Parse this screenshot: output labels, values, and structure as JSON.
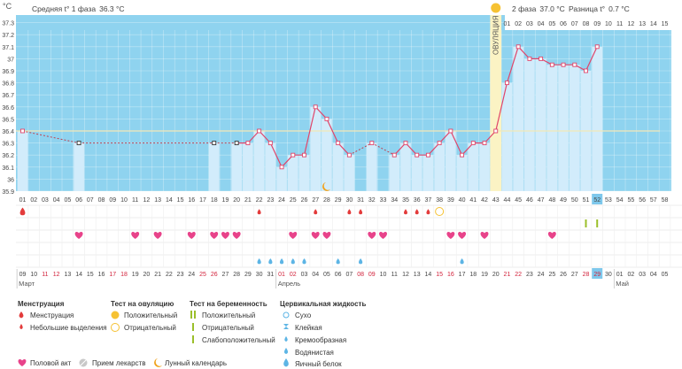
{
  "header": {
    "unit": "°C",
    "phase1_label": "Средняя t° 1 фаза",
    "phase1_value": "36.3 °C",
    "phase2_label": "2 фаза",
    "phase2_value": "37.0 °C",
    "diff_label": "Разница t°",
    "diff_value": "0.7 °C",
    "ovulation_label": "ОВУЛЯЦИЯ"
  },
  "chart_data": {
    "type": "line",
    "y_ticks": [
      "35.9",
      "36",
      "36.1",
      "36.2",
      "36.3",
      "36.4",
      "36.5",
      "36.6",
      "36.7",
      "36.8",
      "36.9",
      "37",
      "37.1",
      "37.2",
      "37.3"
    ],
    "ylim": [
      35.9,
      37.3
    ],
    "cycle_days": [
      "01",
      "02",
      "03",
      "04",
      "05",
      "06",
      "07",
      "08",
      "09",
      "10",
      "11",
      "12",
      "13",
      "14",
      "15",
      "16",
      "17",
      "18",
      "19",
      "20",
      "21",
      "22",
      "23",
      "24",
      "25",
      "26",
      "27",
      "28",
      "29",
      "30",
      "31",
      "32",
      "33",
      "34",
      "35",
      "36",
      "37",
      "38",
      "39",
      "40",
      "41",
      "42",
      "43",
      "44",
      "45",
      "46",
      "47",
      "48",
      "49",
      "50",
      "51",
      "52",
      "53",
      "54",
      "55",
      "56",
      "57",
      "58"
    ],
    "phase2_days": [
      "01",
      "02",
      "03",
      "04",
      "05",
      "06",
      "07",
      "08",
      "09",
      "10",
      "11",
      "12",
      "13",
      "14",
      "15"
    ],
    "phase2_start_day": 44,
    "ovulation_day": 43,
    "current_day": 52,
    "temperatures": [
      36.4,
      null,
      null,
      null,
      null,
      36.3,
      null,
      null,
      null,
      null,
      null,
      null,
      null,
      null,
      null,
      null,
      null,
      36.3,
      null,
      36.3,
      36.3,
      36.4,
      36.3,
      36.1,
      36.2,
      36.2,
      36.6,
      36.5,
      36.3,
      36.2,
      null,
      36.3,
      null,
      36.2,
      36.3,
      36.2,
      36.2,
      36.3,
      36.4,
      36.2,
      36.3,
      36.3,
      36.4,
      36.8,
      37.1,
      37.0,
      37.0,
      36.95,
      36.95,
      36.95,
      36.9,
      37.1,
      null,
      null,
      null,
      null,
      null,
      null
    ],
    "coverline": 36.4,
    "dates": [
      "09",
      "10",
      "11",
      "12",
      "13",
      "14",
      "15",
      "16",
      "17",
      "18",
      "19",
      "20",
      "21",
      "22",
      "23",
      "24",
      "25",
      "26",
      "27",
      "28",
      "29",
      "30",
      "31",
      "01",
      "02",
      "03",
      "04",
      "05",
      "06",
      "07",
      "08",
      "09",
      "10",
      "11",
      "12",
      "13",
      "14",
      "15",
      "16",
      "17",
      "18",
      "19",
      "20",
      "21",
      "22",
      "23",
      "24",
      "25",
      "26",
      "27",
      "28",
      "29",
      "30",
      "01",
      "02",
      "03",
      "04",
      "05"
    ],
    "date_colors": [
      "#444444",
      "#444444",
      "#d2233c",
      "#d2233c",
      "#444444",
      "#444444",
      "#444444",
      "#444444",
      "#d2233c",
      "#d2233c",
      "#444444",
      "#444444",
      "#444444",
      "#444444",
      "#444444",
      "#444444",
      "#d2233c",
      "#d2233c",
      "#444444",
      "#444444",
      "#444444",
      "#444444",
      "#444444",
      "#d2233c",
      "#d2233c",
      "#444444",
      "#444444",
      "#444444",
      "#444444",
      "#444444",
      "#d2233c",
      "#d2233c",
      "#444444",
      "#444444",
      "#444444",
      "#444444",
      "#444444",
      "#d2233c",
      "#d2233c",
      "#444444",
      "#444444",
      "#444444",
      "#444444",
      "#d2233c",
      "#d2233c",
      "#444444",
      "#444444",
      "#444444",
      "#444444",
      "#444444",
      "#d2233c",
      "#d2233c",
      "#444444",
      "#444444",
      "#444444",
      "#444444",
      "#444444",
      "#444444"
    ],
    "month_labels": [
      {
        "label": "Март",
        "day": 1
      },
      {
        "label": "Апрель",
        "day": 24
      },
      {
        "label": "Май",
        "day": 54
      }
    ],
    "menstruation_days": [
      1
    ],
    "spotting_days": [
      22,
      27,
      30,
      31,
      35,
      36,
      37
    ],
    "ovulation_test_negative_days": [
      38
    ],
    "pregnancy_test_negative_days": [
      51,
      52
    ],
    "intercourse_days": [
      6,
      11,
      13,
      16,
      18,
      19,
      20,
      25,
      27,
      28,
      32,
      33,
      39,
      40,
      42,
      48
    ],
    "cervical_fluid_watery_days": [
      22,
      23,
      24,
      25,
      26,
      29,
      31,
      40
    ],
    "lunar_calendar_days": [
      28
    ]
  },
  "legend": {
    "menstruation": {
      "title": "Менструация",
      "items": [
        "Менструация",
        "Небольшие выделения"
      ]
    },
    "ovulation_test": {
      "title": "Тест на овуляцию",
      "items": [
        "Положительный",
        "Отрицательный"
      ]
    },
    "pregnancy_test": {
      "title": "Тест на беременность",
      "items": [
        "Положительный",
        "Отрицательный",
        "Слабоположительный"
      ]
    },
    "cervical": {
      "title": "Цервикальная жидкость",
      "items": [
        "Сухо",
        "Клейкая",
        "Кремообразная",
        "Водянистая",
        "Яичный белок"
      ]
    },
    "bottom": [
      "Половой акт",
      "Прием лекарств",
      "Лунный календарь"
    ]
  },
  "colors": {
    "background_blue": "#8fd3ef",
    "bar_light": "#d2ecfb",
    "line": "#e0456a",
    "ovulation": "#fbf3c4",
    "heart": "#e8438a",
    "drop_red": "#e33b3b",
    "drop_blue": "#5db5e5",
    "today": "#7ec8ec",
    "preg_neg": "#9bbf2a"
  }
}
